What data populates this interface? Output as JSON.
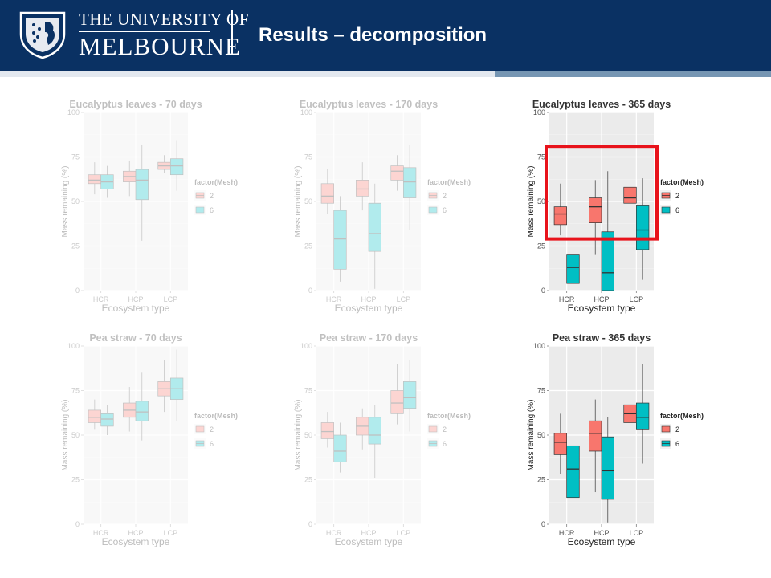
{
  "header": {
    "university_line1": "THE UNIVERSITY OF",
    "university_line2": "MELBOURNE",
    "title": "Results – decomposition"
  },
  "colors": {
    "header_bg": "#0a3163",
    "mesh_2": "#f8766d",
    "mesh_6": "#00bfc4",
    "highlight": "#e8131b",
    "panel_bg": "#ebebeb"
  },
  "chart_data": [
    {
      "type": "boxplot",
      "faded": true,
      "title": "Eucalyptus leaves - 70 days",
      "xlabel": "Ecosystem type",
      "ylabel": "Mass remaining (%)",
      "ylim": [
        0,
        100
      ],
      "yticks": [
        "0",
        "25",
        "50",
        "75",
        "100"
      ],
      "categories": [
        "HCR",
        "HCP",
        "LCP"
      ],
      "legend": {
        "title": "factor(Mesh)",
        "labels": [
          "2",
          "6"
        ]
      },
      "series": [
        {
          "name": "2",
          "boxes": [
            [
              54,
              60,
              62,
              65,
              72
            ],
            [
              53,
              61,
              64,
              67,
              73
            ],
            [
              66,
              68,
              70,
              72,
              76
            ]
          ]
        },
        {
          "name": "6",
          "boxes": [
            [
              52,
              57,
              61,
              65,
              70
            ],
            [
              28,
              51,
              62,
              68,
              82
            ],
            [
              56,
              65,
              70,
              74,
              84
            ]
          ]
        }
      ]
    },
    {
      "type": "boxplot",
      "faded": true,
      "title": "Eucalyptus leaves - 170 days",
      "xlabel": "Ecosystem type",
      "ylabel": "Mass remaining (%)",
      "ylim": [
        0,
        100
      ],
      "yticks": [
        "0",
        "25",
        "50",
        "75",
        "100"
      ],
      "categories": [
        "HCR",
        "HCP",
        "LCP"
      ],
      "legend": {
        "title": "factor(Mesh)",
        "labels": [
          "2",
          "6"
        ]
      },
      "series": [
        {
          "name": "2",
          "boxes": [
            [
              43,
              49,
              53,
              60,
              68
            ],
            [
              45,
              53,
              57,
              62,
              72
            ],
            [
              56,
              62,
              67,
              70,
              76
            ]
          ]
        },
        {
          "name": "6",
          "boxes": [
            [
              5,
              12,
              29,
              45,
              53
            ],
            [
              1,
              22,
              32,
              49,
              60
            ],
            [
              34,
              52,
              61,
              69,
              82
            ]
          ]
        }
      ]
    },
    {
      "type": "boxplot",
      "faded": false,
      "title": "Eucalyptus leaves - 365 days",
      "xlabel": "Ecosystem type",
      "ylabel": "Mass remaining (%)",
      "ylim": [
        0,
        100
      ],
      "yticks": [
        "0",
        "25",
        "50",
        "75",
        "100"
      ],
      "categories": [
        "HCR",
        "HCP",
        "LCP"
      ],
      "legend": {
        "title": "factor(Mesh)",
        "labels": [
          "2",
          "6"
        ]
      },
      "highlight_box": [
        0,
        29,
        3,
        81
      ],
      "series": [
        {
          "name": "2",
          "boxes": [
            [
              31,
              37,
              43,
              47,
              60
            ],
            [
              20,
              38,
              47,
              52,
              62
            ],
            [
              42,
              49,
              52,
              58,
              62
            ]
          ]
        },
        {
          "name": "6",
          "boxes": [
            [
              1,
              4,
              13,
              20,
              26
            ],
            [
              0,
              0,
              10,
              33,
              67
            ],
            [
              6,
              23,
              34,
              48,
              63
            ]
          ]
        }
      ]
    },
    {
      "type": "boxplot",
      "faded": true,
      "title": "Pea straw - 70 days",
      "xlabel": "Ecosystem type",
      "ylabel": "Mass remaining (%)",
      "ylim": [
        0,
        100
      ],
      "yticks": [
        "0",
        "25",
        "50",
        "75",
        "100"
      ],
      "categories": [
        "HCR",
        "HCP",
        "LCP"
      ],
      "legend": {
        "title": "factor(Mesh)",
        "labels": [
          "2",
          "6"
        ]
      },
      "series": [
        {
          "name": "2",
          "boxes": [
            [
              53,
              57,
              60,
              64,
              70
            ],
            [
              52,
              60,
              64,
              68,
              77
            ],
            [
              63,
              72,
              76,
              80,
              92
            ]
          ]
        },
        {
          "name": "6",
          "boxes": [
            [
              50,
              55,
              59,
              62,
              67
            ],
            [
              47,
              58,
              63,
              69,
              85
            ],
            [
              58,
              70,
              76,
              82,
              98
            ]
          ]
        }
      ]
    },
    {
      "type": "boxplot",
      "faded": true,
      "title": "Pea straw - 170 days",
      "xlabel": "Ecosystem type",
      "ylabel": "Mass remaining (%)",
      "ylim": [
        0,
        100
      ],
      "yticks": [
        "0",
        "25",
        "50",
        "75",
        "100"
      ],
      "categories": [
        "HCR",
        "HCP",
        "LCP"
      ],
      "legend": {
        "title": "factor(Mesh)",
        "labels": [
          "2",
          "6"
        ]
      },
      "series": [
        {
          "name": "2",
          "boxes": [
            [
              43,
              48,
              52,
              57,
              63
            ],
            [
              42,
              50,
              55,
              60,
              65
            ],
            [
              56,
              62,
              68,
              75,
              90
            ]
          ]
        },
        {
          "name": "6",
          "boxes": [
            [
              29,
              35,
              41,
              50,
              57
            ],
            [
              26,
              45,
              50,
              60,
              67
            ],
            [
              52,
              65,
              71,
              80,
              92
            ]
          ]
        }
      ]
    },
    {
      "type": "boxplot",
      "faded": false,
      "title": "Pea straw - 365 days",
      "xlabel": "Ecosystem type",
      "ylabel": "Mass remaining (%)",
      "ylim": [
        0,
        100
      ],
      "yticks": [
        "0",
        "25",
        "50",
        "75",
        "100"
      ],
      "categories": [
        "HCR",
        "HCP",
        "LCP"
      ],
      "legend": {
        "title": "factor(Mesh)",
        "labels": [
          "2",
          "6"
        ]
      },
      "series": [
        {
          "name": "2",
          "boxes": [
            [
              28,
              39,
              46,
              51,
              62
            ],
            [
              18,
              41,
              51,
              58,
              70
            ],
            [
              48,
              57,
              62,
              67,
              75
            ]
          ]
        },
        {
          "name": "6",
          "boxes": [
            [
              1,
              15,
              31,
              44,
              62
            ],
            [
              1,
              14,
              30,
              49,
              60
            ],
            [
              34,
              53,
              60,
              68,
              90
            ]
          ]
        }
      ]
    }
  ]
}
